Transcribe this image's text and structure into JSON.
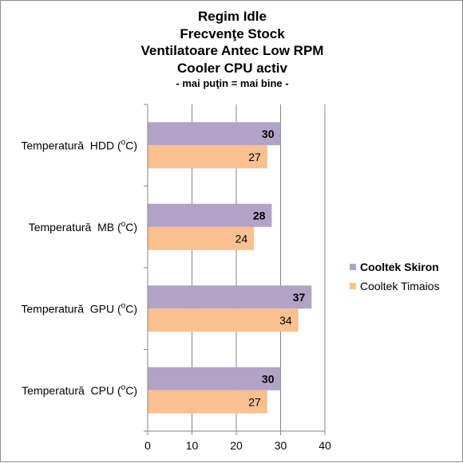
{
  "chart_data": {
    "type": "bar",
    "orientation": "horizontal",
    "title_lines": [
      "Regim Idle",
      "Frecvenţe Stock",
      "Ventilatoare Antec Low RPM",
      "Cooler CPU activ"
    ],
    "subtitle": "- mai puţin = mai bine -",
    "categories": [
      "Temperatură  HDD (°C)",
      "Temperatură  MB (°C)",
      "Temperatură  GPU (°C)",
      "Temperatură  CPU (°C)"
    ],
    "series": [
      {
        "name": "Cooltek Skiron",
        "values": [
          30,
          28,
          37,
          30
        ],
        "color": "#b3a2c7",
        "label_bold": true
      },
      {
        "name": "Cooltek Timaios",
        "values": [
          27,
          24,
          34,
          27
        ],
        "color": "#fac090",
        "label_bold": false
      }
    ],
    "x_ticks": [
      0,
      10,
      20,
      30,
      40
    ],
    "xlim": [
      0,
      40
    ],
    "grid": true,
    "legend": "right"
  }
}
